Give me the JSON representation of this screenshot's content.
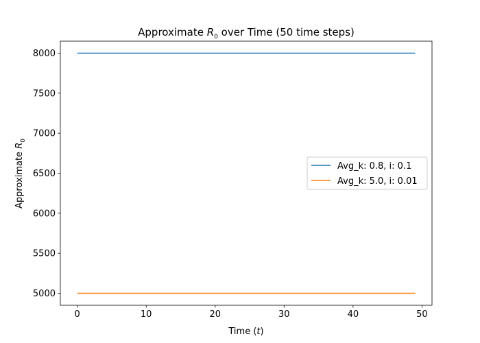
{
  "chart_data": {
    "type": "line",
    "title": {
      "before": "Approximate ",
      "symbol": "R",
      "subscript": "0",
      "after": " over Time (50 time steps)"
    },
    "xlabel": {
      "before": "Time (",
      "symbol": "t",
      "after": ")"
    },
    "ylabel": {
      "before": "Approximate ",
      "symbol": "R",
      "subscript": "0"
    },
    "xlim": [
      -2.45,
      51.45
    ],
    "ylim": [
      4850,
      8150
    ],
    "xticks": [
      0,
      10,
      20,
      30,
      40,
      50
    ],
    "yticks": [
      5000,
      5500,
      6000,
      6500,
      7000,
      7500,
      8000
    ],
    "grid": false,
    "legend_position": "center-right",
    "series": [
      {
        "name": "Avg_k: 0.8, i: 0.1",
        "color": "#1f77b4",
        "x_start": 0,
        "x_end": 49,
        "value": 8000
      },
      {
        "name": "Avg_k: 5.0, i: 0.01",
        "color": "#ff7f0e",
        "x_start": 0,
        "x_end": 49,
        "value": 5000
      }
    ]
  }
}
